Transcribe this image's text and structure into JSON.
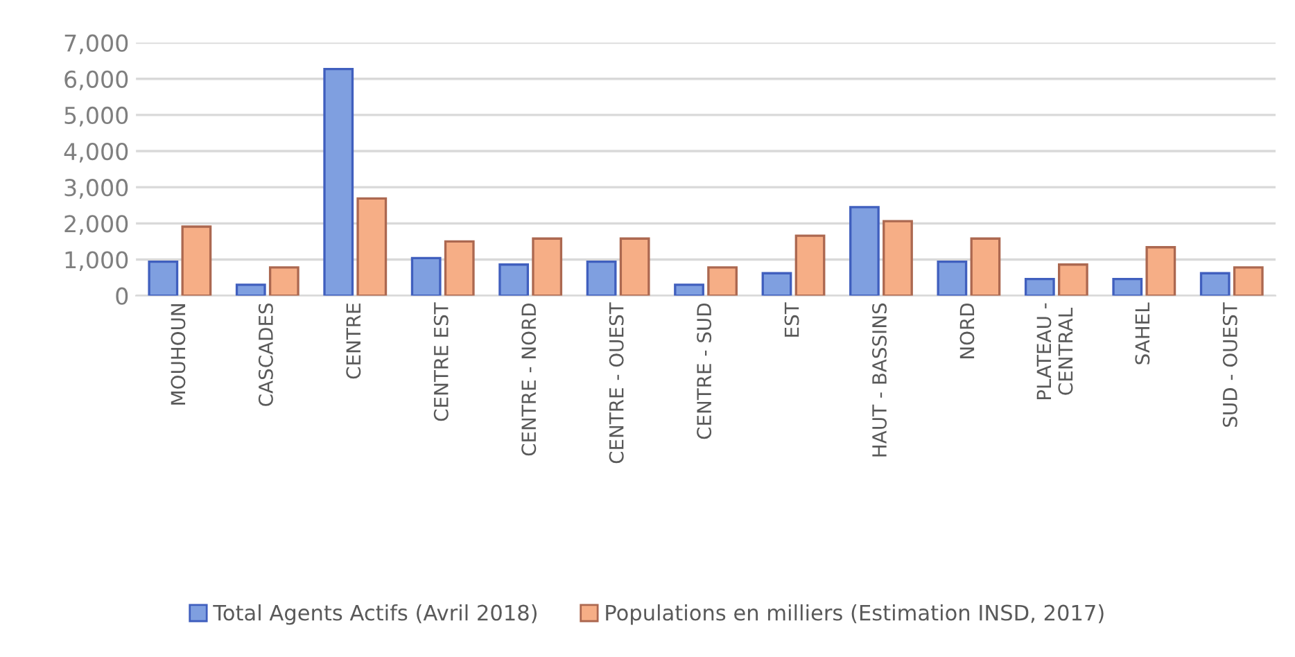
{
  "chart_data": {
    "type": "bar",
    "categories": [
      "MOUHOUN",
      "CASCADES",
      "CENTRE",
      "CENTRE EST",
      "CENTRE - NORD",
      "CENTRE - OUEST",
      "CENTRE - SUD",
      "EST",
      "HAUT - BASSINS",
      "NORD",
      "PLATEAU -\nCENTRAL",
      "SAHEL",
      "SUD - OUEST"
    ],
    "series": [
      {
        "name": "Total Agents Actifs (Avril 2018)",
        "color": "#7f9fe0",
        "values": [
          940,
          300,
          6270,
          1040,
          860,
          940,
          300,
          620,
          2450,
          940,
          460,
          460,
          620
        ]
      },
      {
        "name": "Populations en milliers (Estimation INSD, 2017)",
        "color": "#f6ae86",
        "values": [
          1910,
          780,
          2690,
          1500,
          1580,
          1580,
          780,
          1660,
          2060,
          1580,
          860,
          1340,
          780
        ]
      }
    ],
    "ylim": [
      0,
      7000
    ],
    "yticks": [
      {
        "value": 0,
        "label": "0"
      },
      {
        "value": 1000,
        "label": "1,000"
      },
      {
        "value": 2000,
        "label": "2,000"
      },
      {
        "value": 3000,
        "label": "3,000"
      },
      {
        "value": 4000,
        "label": "4,000"
      },
      {
        "value": 5000,
        "label": "5,000"
      },
      {
        "value": 6000,
        "label": "6,000"
      },
      {
        "value": 7000,
        "label": "7,000"
      }
    ],
    "grid": "y",
    "legend": "bottom"
  }
}
